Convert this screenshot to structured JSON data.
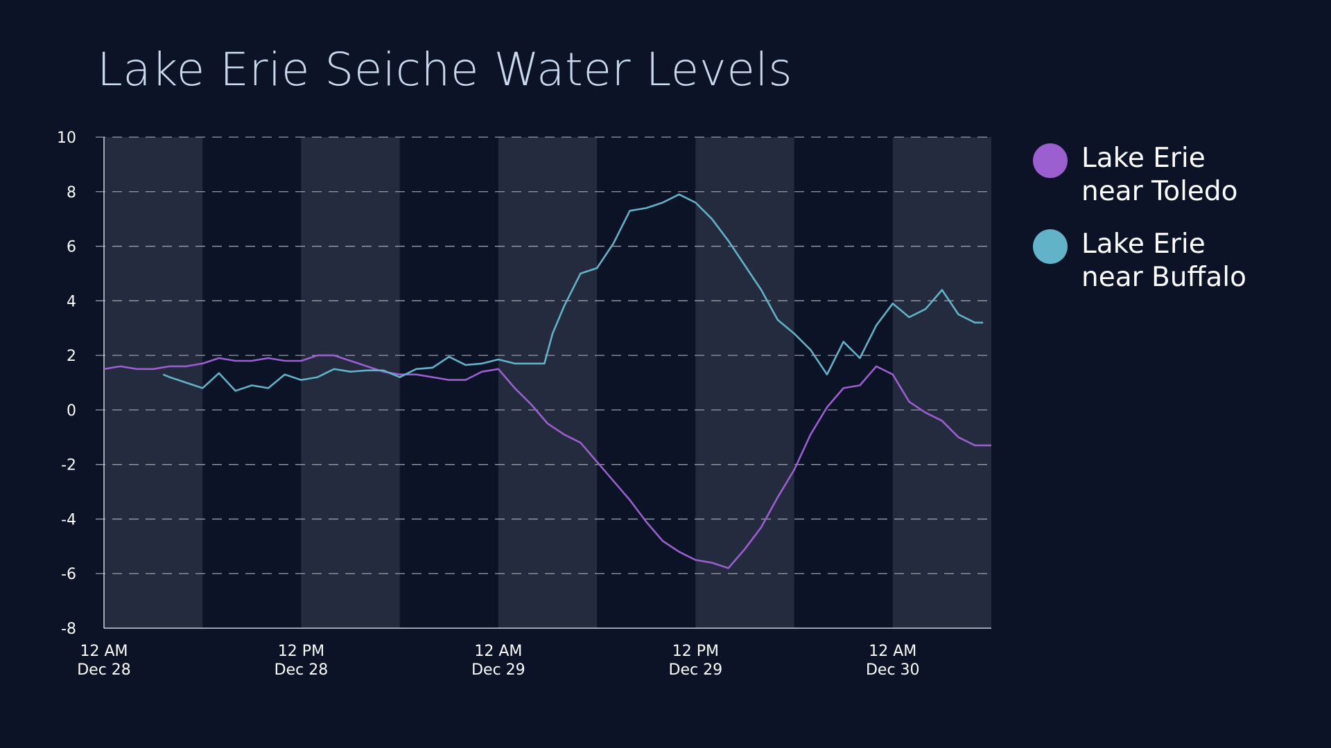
{
  "title": "Lake Erie Seiche Water Levels",
  "chart_data": {
    "type": "line",
    "title": "Lake Erie Seiche Water Levels",
    "xlabel": "",
    "ylabel": "",
    "xlim_hours_from_12AM_Dec28": [
      0,
      54
    ],
    "ylim": [
      -8,
      10
    ],
    "yticks": [
      "10",
      "8",
      "6",
      "4",
      "2",
      "0",
      "-2",
      "-4",
      "-6",
      "-8"
    ],
    "xticks": [
      {
        "hour": 0,
        "line1": "12 AM",
        "line2": "Dec 28"
      },
      {
        "hour": 12,
        "line1": "12 PM",
        "line2": "Dec 28"
      },
      {
        "hour": 24,
        "line1": "12 AM",
        "line2": "Dec 29"
      },
      {
        "hour": 36,
        "line1": "12 PM",
        "line2": "Dec 29"
      },
      {
        "hour": 48,
        "line1": "12 AM",
        "line2": "Dec 30"
      }
    ],
    "shaded_bands_hours": [
      [
        0,
        6
      ],
      [
        12,
        18
      ],
      [
        24,
        30
      ],
      [
        36,
        42
      ],
      [
        48,
        54
      ]
    ],
    "grid": "horizontal dashed",
    "legend_position": "right",
    "series": [
      {
        "name": "Lake Erie near Toledo",
        "color": "#9b5fd0",
        "x": [
          0,
          1,
          2,
          3,
          4,
          5,
          6,
          7,
          8,
          9,
          10,
          11,
          12,
          13,
          14,
          15,
          16,
          17,
          18,
          19,
          20,
          21,
          22,
          23,
          24,
          25,
          26,
          27,
          28,
          29,
          30,
          31,
          32,
          33,
          34,
          35,
          36,
          37,
          38,
          39,
          40,
          41,
          42,
          43,
          44,
          45,
          46,
          47,
          48,
          49,
          50,
          51,
          52,
          53,
          54
        ],
        "y": [
          1.5,
          1.6,
          1.5,
          1.5,
          1.6,
          1.6,
          1.7,
          1.9,
          1.8,
          1.8,
          1.9,
          1.8,
          1.8,
          2.0,
          2.0,
          1.8,
          1.6,
          1.4,
          1.3,
          1.3,
          1.2,
          1.1,
          1.1,
          1.4,
          1.5,
          0.8,
          0.2,
          -0.5,
          -0.9,
          -1.2,
          -1.9,
          -2.6,
          -3.3,
          -4.1,
          -4.8,
          -5.2,
          -5.5,
          -5.6,
          -5.8,
          -5.1,
          -4.3,
          -3.2,
          -2.2,
          -0.9,
          0.1,
          0.8,
          0.9,
          1.6,
          1.3,
          0.3,
          -0.1,
          -0.4,
          -1.0,
          -1.3,
          -1.3
        ]
      },
      {
        "name": "Lake Erie near Buffalo",
        "color": "#62b3c8",
        "x": [
          3.6,
          4,
          5,
          6,
          7,
          8,
          9,
          10,
          11,
          12,
          13,
          14,
          15,
          16,
          17,
          18,
          19,
          20,
          21,
          22,
          23,
          24,
          25,
          26,
          26.8,
          27.3,
          28,
          29,
          30,
          31,
          32,
          33,
          34,
          35,
          36,
          37,
          38,
          39,
          40,
          41,
          42,
          43,
          44,
          45,
          46,
          47,
          48,
          49,
          50,
          51,
          52,
          53,
          53.5
        ],
        "y": [
          1.3,
          1.2,
          1.0,
          0.8,
          1.35,
          0.7,
          0.9,
          0.8,
          1.3,
          1.1,
          1.2,
          1.5,
          1.4,
          1.45,
          1.45,
          1.2,
          1.5,
          1.55,
          1.95,
          1.65,
          1.7,
          1.85,
          1.7,
          1.7,
          1.7,
          2.8,
          3.8,
          5.0,
          5.2,
          6.1,
          7.3,
          7.4,
          7.6,
          7.9,
          7.6,
          7.0,
          6.2,
          5.3,
          4.4,
          3.3,
          2.8,
          2.2,
          1.3,
          2.5,
          1.9,
          3.1,
          3.9,
          3.4,
          3.7,
          4.4,
          3.5,
          3.2,
          3.2
        ]
      }
    ]
  },
  "legend": [
    {
      "line1": "Lake Erie",
      "line2": "near Toledo",
      "color": "#9b5fd0"
    },
    {
      "line1": "Lake Erie",
      "line2": "near Buffalo",
      "color": "#62b3c8"
    }
  ]
}
